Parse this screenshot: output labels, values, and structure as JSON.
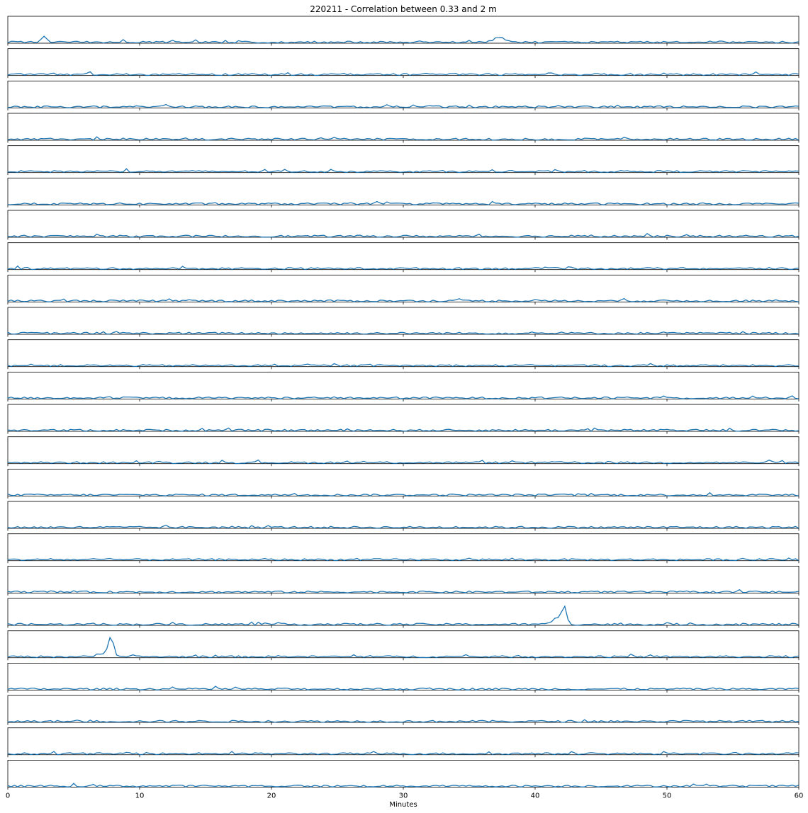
{
  "chart_data": {
    "type": "line",
    "title": "220211 - Correlation between 0.33 and 2 m",
    "xlabel": "Minutes",
    "ylabel": "",
    "xlim": [
      0,
      60
    ],
    "x_ticks": [
      0,
      10,
      20,
      30,
      40,
      50,
      60
    ],
    "panel_count": 24,
    "ylim": [
      0,
      1
    ],
    "grid": false,
    "legend": "none",
    "line_color": "#1f77b4",
    "baseline": 0.04,
    "noise_amplitude": 0.07,
    "sample_step_minutes": 0.25,
    "peaks": [
      {
        "panel": 0,
        "x": 2.8,
        "y": 0.22,
        "width": 0.2
      },
      {
        "panel": 0,
        "x": 37.2,
        "y": 0.2,
        "width": 0.35
      },
      {
        "panel": 18,
        "x": 42.2,
        "y": 0.7,
        "width": 0.18
      },
      {
        "panel": 18,
        "x": 41.6,
        "y": 0.22,
        "width": 0.3
      },
      {
        "panel": 19,
        "x": 7.8,
        "y": 0.75,
        "width": 0.22
      },
      {
        "panel": 19,
        "x": 7.0,
        "y": 0.12,
        "width": 0.25
      }
    ]
  }
}
